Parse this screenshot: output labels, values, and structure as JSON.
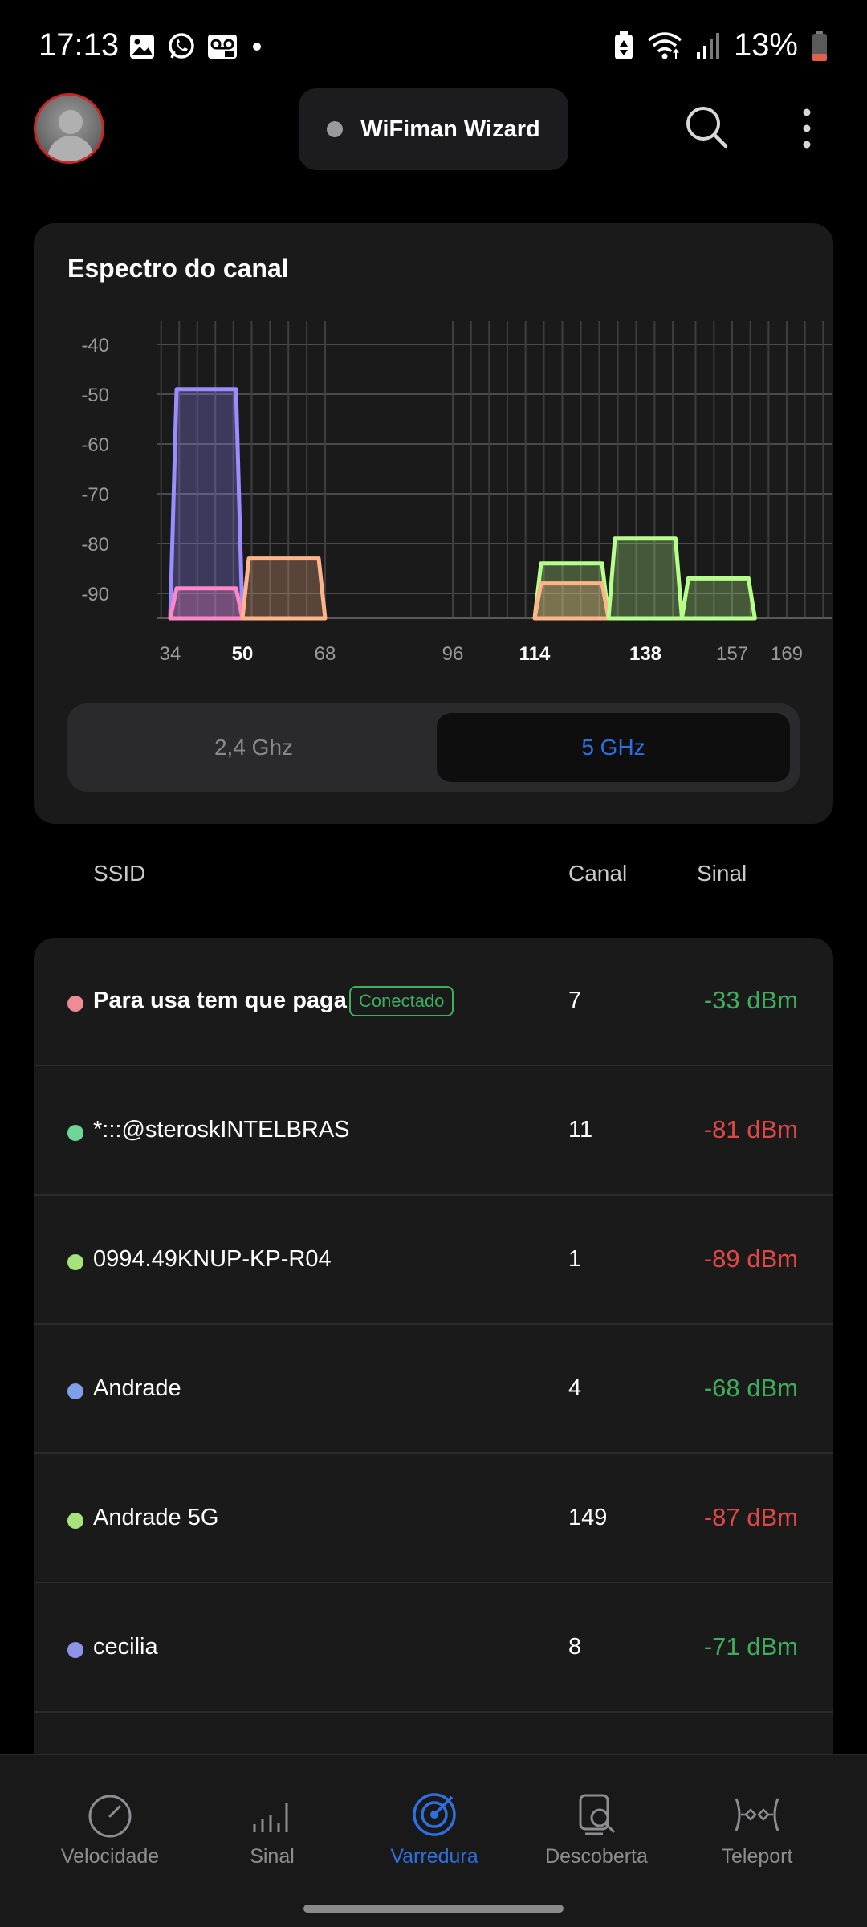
{
  "status_bar": {
    "time": "17:13",
    "battery": "13%",
    "left_icons": [
      "image-icon",
      "whatsapp-icon",
      "voicemail-icon",
      "dot-icon"
    ],
    "right_icons": [
      "battery-saver-icon",
      "wifi-icon",
      "signal-icon",
      "battery-icon"
    ]
  },
  "header": {
    "wizard_label": "WiFiman Wizard"
  },
  "spectrum": {
    "title": "Espectro do canal",
    "y_ticks": [
      "-40",
      "-50",
      "-60",
      "-70",
      "-80",
      "-90"
    ],
    "x_ticks": [
      {
        "label": "34",
        "bold": false
      },
      {
        "label": "50",
        "bold": true
      },
      {
        "label": "68",
        "bold": false
      },
      {
        "label": "96",
        "bold": false
      },
      {
        "label": "114",
        "bold": true
      },
      {
        "label": "138",
        "bold": true
      },
      {
        "label": "157",
        "bold": false
      },
      {
        "label": "169",
        "bold": false
      }
    ],
    "band_24_label": "2,4 Ghz",
    "band_5_label": "5 GHz",
    "selected_band": "5 GHz"
  },
  "chart_data": {
    "type": "area",
    "title": "Espectro do canal",
    "xlabel": "",
    "ylabel": "",
    "ylim": [
      -95,
      -35
    ],
    "x_ticks": [
      34,
      50,
      68,
      96,
      114,
      138,
      157,
      169
    ],
    "series": [
      {
        "color": "#9b8cff",
        "channel_range": [
          34,
          50
        ],
        "signal": -49
      },
      {
        "color": "#ff86c8",
        "channel_range": [
          34,
          50
        ],
        "signal": -89
      },
      {
        "color": "#ffb48a",
        "channel_range": [
          50,
          68
        ],
        "signal": -83
      },
      {
        "color": "#b6ff8a",
        "channel_range": [
          114,
          130
        ],
        "signal": -84
      },
      {
        "color": "#ffb48a",
        "channel_range": [
          114,
          130
        ],
        "signal": -88
      },
      {
        "color": "#b6ff8a",
        "channel_range": [
          130,
          146
        ],
        "signal": -79
      },
      {
        "color": "#b6ff8a",
        "channel_range": [
          146,
          162
        ],
        "signal": -87
      }
    ]
  },
  "list_headers": {
    "ssid": "SSID",
    "channel": "Canal",
    "signal": "Sinal"
  },
  "networks": [
    {
      "ssid": "Para usa tem que paga",
      "badge": "Conectado",
      "channel": "7",
      "signal": "-33 dBm",
      "dot_color": "#f08a96",
      "signal_color": "#3eae5c",
      "bold": true
    },
    {
      "ssid": "*:::@steroskINTELBRAS",
      "badge": "",
      "channel": "11",
      "signal": "-81 dBm",
      "dot_color": "#6fd69a",
      "signal_color": "#e04848",
      "bold": false
    },
    {
      "ssid": "0994.49KNUP-KP-R04",
      "badge": "",
      "channel": "1",
      "signal": "-89 dBm",
      "dot_color": "#a8e27a",
      "signal_color": "#e04848",
      "bold": false
    },
    {
      "ssid": "Andrade",
      "badge": "",
      "channel": "4",
      "signal": "-68 dBm",
      "dot_color": "#7f9fe8",
      "signal_color": "#3eae5c",
      "bold": false
    },
    {
      "ssid": "Andrade 5G",
      "badge": "",
      "channel": "149",
      "signal": "-87 dBm",
      "dot_color": "#a8e27a",
      "signal_color": "#e04848",
      "bold": false
    },
    {
      "ssid": "cecilia",
      "badge": "",
      "channel": "8",
      "signal": "-71 dBm",
      "dot_color": "#8e93e8",
      "signal_color": "#3eae5c",
      "bold": false
    }
  ],
  "bottom_nav": [
    {
      "label": "Velocidade",
      "icon": "speedometer-icon",
      "active": false
    },
    {
      "label": "Sinal",
      "icon": "signal-bars-icon",
      "active": false
    },
    {
      "label": "Varredura",
      "icon": "radar-icon",
      "active": true
    },
    {
      "label": "Descoberta",
      "icon": "device-search-icon",
      "active": false
    },
    {
      "label": "Teleport",
      "icon": "teleport-icon",
      "active": false
    }
  ],
  "colors": {
    "accent": "#2f6fe0",
    "good_signal": "#3eae5c",
    "bad_signal": "#e04848"
  }
}
